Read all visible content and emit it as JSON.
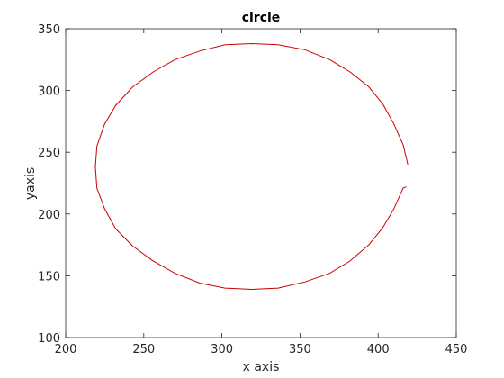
{
  "chart_data": {
    "type": "line",
    "title": "circle",
    "xlabel": "x axis",
    "ylabel": "yaxis",
    "xlim": [
      200,
      450
    ],
    "ylim": [
      100,
      350
    ],
    "xticks": [
      "200",
      "250",
      "300",
      "350",
      "400",
      "450"
    ],
    "yticks": [
      "100",
      "150",
      "200",
      "250",
      "300",
      "350"
    ],
    "grid": false,
    "line_color": "#cc0000",
    "series": [
      {
        "x": [
          419,
          416,
          410,
          403,
          394,
          382,
          369,
          353,
          336,
          319,
          302,
          286,
          270,
          256,
          243,
          232,
          225,
          220,
          219,
          220,
          225,
          232,
          243,
          256,
          270,
          286,
          302,
          319,
          336,
          353,
          369,
          382,
          394,
          403,
          410,
          416,
          418
        ],
        "y": [
          240,
          256,
          273,
          289,
          303,
          315,
          325,
          333,
          337,
          338,
          337,
          332,
          325,
          315,
          303,
          288,
          273,
          255,
          238,
          221,
          204,
          188,
          174,
          162,
          152,
          144,
          140,
          139,
          140,
          145,
          152,
          162,
          175,
          189,
          204,
          221,
          222
        ]
      }
    ]
  }
}
